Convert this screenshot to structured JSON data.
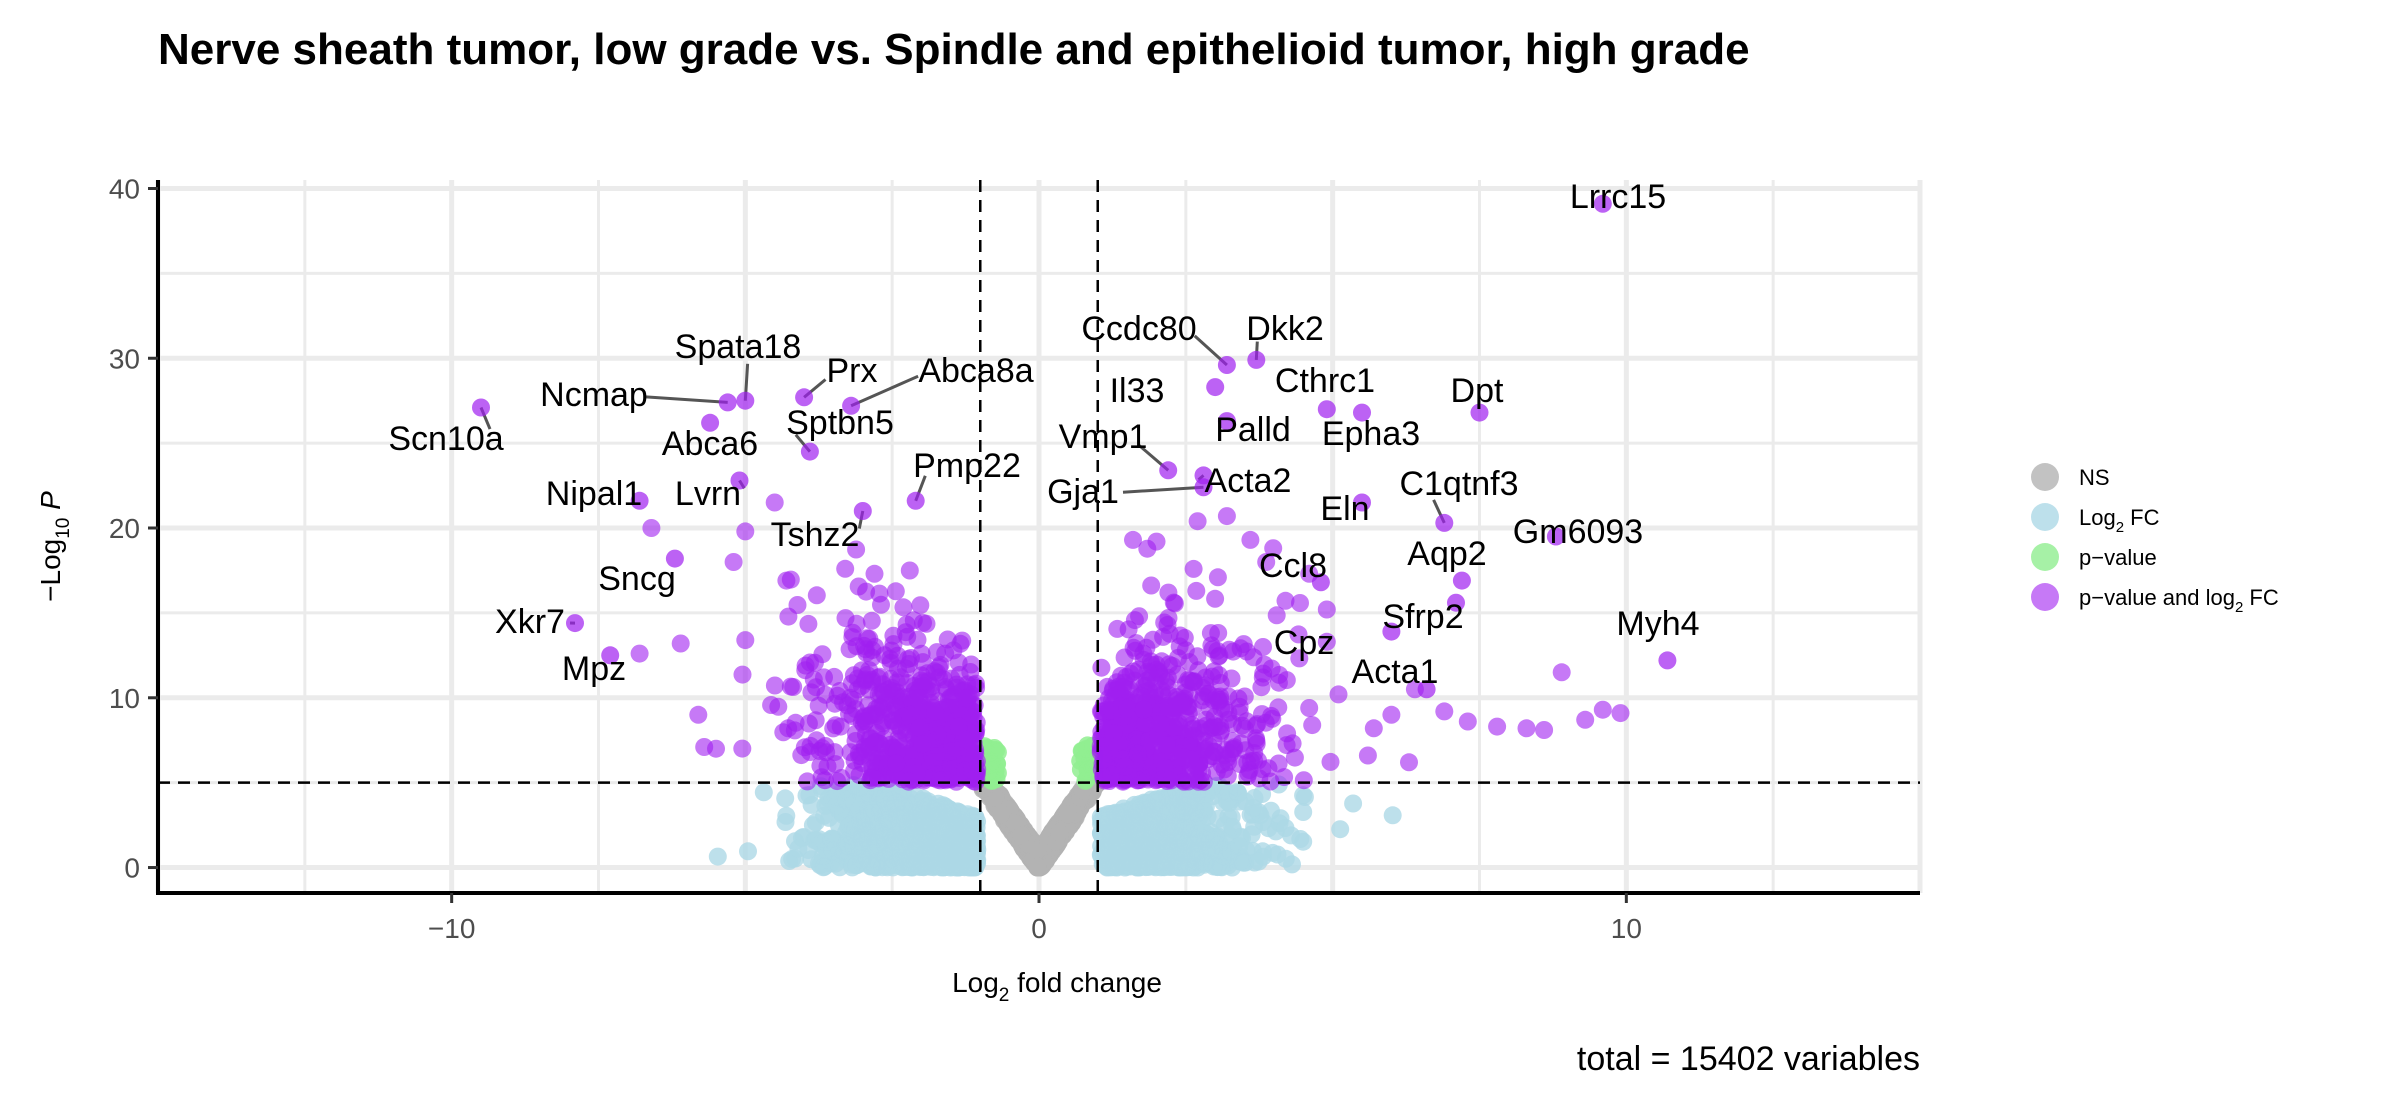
{
  "chart_data": {
    "type": "scatter",
    "title": "Nerve sheath tumor, low grade vs. Spindle and epithelioid tumor, high grade",
    "xlabel": "Log2 fold change",
    "ylabel": "−Log10 P",
    "xlim": [
      -15.0,
      15.0
    ],
    "ylim": [
      -1.5,
      40.5
    ],
    "x_ticks": [
      -10,
      0,
      10
    ],
    "y_ticks": [
      0,
      10,
      20,
      30,
      40
    ],
    "x_tick_labels": [
      "−10",
      "0",
      "10"
    ],
    "y_tick_labels": [
      "0",
      "10",
      "20",
      "30",
      "40"
    ],
    "cutoffs": {
      "log2fc": [
        -1,
        1
      ],
      "neg_log10_p": 5
    },
    "grid": true,
    "legend_placement": "right",
    "caption": "total = 15402 variables",
    "colors": {
      "ns": "#b3b3b3",
      "log2fc": "#add8e6",
      "pvalue": "#90ee90",
      "both": "#a020f0"
    },
    "legend": [
      {
        "key": "ns",
        "label": "NS"
      },
      {
        "key": "log2fc",
        "label": "Log",
        "sub": "2",
        "suffix": " FC"
      },
      {
        "key": "pvalue",
        "label": "p−value"
      },
      {
        "key": "both",
        "label": "p−value and log",
        "sub": "2",
        "suffix": " FC"
      }
    ],
    "labeled_genes": [
      {
        "name": "Lrrc15",
        "x": 9.6,
        "y": 39.1
      },
      {
        "name": "Ccdc80",
        "x": 3.2,
        "y": 29.6
      },
      {
        "name": "Dkk2",
        "x": 3.7,
        "y": 29.9
      },
      {
        "name": "Spata18",
        "x": -5.0,
        "y": 27.5
      },
      {
        "name": "Prx",
        "x": -4.0,
        "y": 27.7
      },
      {
        "name": "Abca8a",
        "x": -3.2,
        "y": 27.2
      },
      {
        "name": "Il33",
        "x": 3.0,
        "y": 28.3
      },
      {
        "name": "Cthrc1",
        "x": 4.9,
        "y": 27.0
      },
      {
        "name": "Dpt",
        "x": 7.5,
        "y": 26.8
      },
      {
        "name": "Ncmap",
        "x": -5.3,
        "y": 27.4
      },
      {
        "name": "Scn10a",
        "x": -9.5,
        "y": 27.1
      },
      {
        "name": "Sptbn5",
        "x": -3.9,
        "y": 24.5
      },
      {
        "name": "Palld",
        "x": 3.2,
        "y": 26.3
      },
      {
        "name": "Epha3",
        "x": 5.5,
        "y": 26.8
      },
      {
        "name": "Abca6",
        "x": -5.6,
        "y": 26.2
      },
      {
        "name": "Vmp1",
        "x": 2.2,
        "y": 23.4
      },
      {
        "name": "Pmp22",
        "x": -2.1,
        "y": 21.6
      },
      {
        "name": "Acta2",
        "x": 2.8,
        "y": 23.1
      },
      {
        "name": "C1qtnf3",
        "x": 6.9,
        "y": 20.3
      },
      {
        "name": "Gja1",
        "x": 2.8,
        "y": 22.4
      },
      {
        "name": "Nipal1",
        "x": -6.8,
        "y": 21.6
      },
      {
        "name": "Lvrn",
        "x": -5.1,
        "y": 22.8
      },
      {
        "name": "Eln",
        "x": 5.5,
        "y": 21.5
      },
      {
        "name": "Tshz2",
        "x": -3.0,
        "y": 21.0
      },
      {
        "name": "Gm6093",
        "x": 8.8,
        "y": 19.5
      },
      {
        "name": "Aqp2",
        "x": 7.2,
        "y": 16.9
      },
      {
        "name": "Ccl8",
        "x": 4.8,
        "y": 16.8
      },
      {
        "name": "Sncg",
        "x": -6.2,
        "y": 18.2
      },
      {
        "name": "Sfrp2",
        "x": 7.1,
        "y": 15.6
      },
      {
        "name": "Xkr7",
        "x": -7.9,
        "y": 14.4
      },
      {
        "name": "Myh4",
        "x": 10.7,
        "y": 12.2
      },
      {
        "name": "Cpz",
        "x": 6.0,
        "y": 13.9
      },
      {
        "name": "Mpz",
        "x": -7.3,
        "y": 12.5
      },
      {
        "name": "Acta1",
        "x": 6.6,
        "y": 10.5
      }
    ],
    "extra_significant_points": [
      {
        "x": -6.6,
        "y": 20.0
      },
      {
        "x": -4.5,
        "y": 21.5
      },
      {
        "x": -5.0,
        "y": 19.8
      },
      {
        "x": -3.3,
        "y": 17.6
      },
      {
        "x": -2.8,
        "y": 17.3
      },
      {
        "x": -5.2,
        "y": 18.0
      },
      {
        "x": -4.3,
        "y": 16.9
      },
      {
        "x": -2.2,
        "y": 17.5
      },
      {
        "x": -6.1,
        "y": 13.2
      },
      {
        "x": -5.0,
        "y": 13.4
      },
      {
        "x": -6.8,
        "y": 12.6
      },
      {
        "x": -5.8,
        "y": 9.0
      },
      {
        "x": -5.7,
        "y": 7.1
      },
      {
        "x": -5.5,
        "y": 7.0
      },
      {
        "x": 4.6,
        "y": 17.3
      },
      {
        "x": 3.2,
        "y": 20.7
      },
      {
        "x": 3.6,
        "y": 19.3
      },
      {
        "x": 4.9,
        "y": 15.2
      },
      {
        "x": 6.4,
        "y": 10.5
      },
      {
        "x": 7.8,
        "y": 8.3
      },
      {
        "x": 8.3,
        "y": 8.2
      },
      {
        "x": 8.9,
        "y": 11.5
      },
      {
        "x": 9.6,
        "y": 9.3
      },
      {
        "x": 9.9,
        "y": 9.1
      },
      {
        "x": 9.3,
        "y": 8.7
      },
      {
        "x": 8.6,
        "y": 8.1
      },
      {
        "x": 6.0,
        "y": 9.0
      },
      {
        "x": 5.7,
        "y": 8.2
      },
      {
        "x": 4.6,
        "y": 9.4
      },
      {
        "x": 5.6,
        "y": 6.6
      },
      {
        "x": 6.3,
        "y": 6.2
      },
      {
        "x": 6.9,
        "y": 9.2
      },
      {
        "x": 7.3,
        "y": 8.6
      },
      {
        "x": 5.1,
        "y": 10.2
      },
      {
        "x": 4.9,
        "y": 13.3
      },
      {
        "x": 2.0,
        "y": 19.2
      },
      {
        "x": 1.6,
        "y": 19.3
      },
      {
        "x": 2.7,
        "y": 20.4
      }
    ]
  }
}
